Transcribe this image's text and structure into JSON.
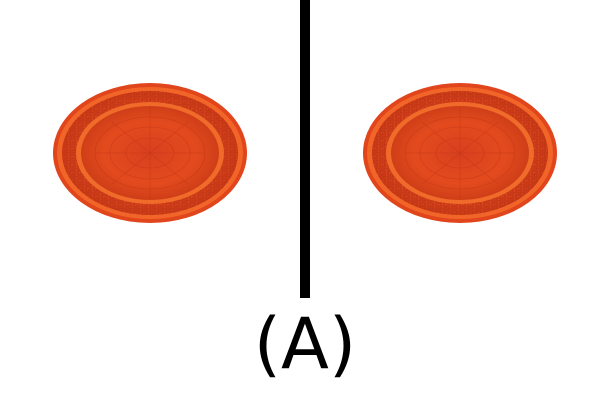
{
  "caption": "(A)",
  "plates": [
    {
      "name": "left-plate",
      "color": "#e24a1c",
      "rim_color": "#f06a2a",
      "pattern_color": "#c8331a"
    },
    {
      "name": "right-plate",
      "color": "#e24a1c",
      "rim_color": "#f06a2a",
      "pattern_color": "#c8331a"
    }
  ],
  "divider_color": "#000000"
}
